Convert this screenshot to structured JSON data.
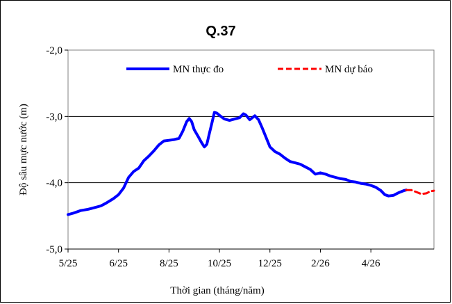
{
  "chart_data": {
    "type": "line",
    "title": "Q.37",
    "xlabel": "Thời gian (tháng/năm)",
    "ylabel": "Độ sâu mực nước (m)",
    "ylim": [
      -5.0,
      -2.0
    ],
    "yticks": [
      -2.0,
      -3.0,
      -4.0,
      -5.0
    ],
    "ytick_labels": [
      "-2,0",
      "-3,0",
      "-4,0",
      "-5,0"
    ],
    "xlim": [
      0,
      14.5
    ],
    "xticks": [
      0,
      2,
      4,
      6,
      8,
      10,
      12
    ],
    "xtick_labels": [
      "5/25",
      "6/25",
      "8/25",
      "10/25",
      "12/25",
      "2/26",
      "4/26"
    ],
    "grid": "horizontal",
    "legend_position": "top",
    "series": [
      {
        "name": "MN thực đo",
        "color": "#0000ff",
        "style": "solid",
        "points": [
          [
            0.0,
            -4.48
          ],
          [
            0.2,
            -4.46
          ],
          [
            0.5,
            -4.42
          ],
          [
            0.8,
            -4.4
          ],
          [
            1.0,
            -4.38
          ],
          [
            1.3,
            -4.35
          ],
          [
            1.5,
            -4.31
          ],
          [
            1.8,
            -4.24
          ],
          [
            2.0,
            -4.18
          ],
          [
            2.2,
            -4.08
          ],
          [
            2.4,
            -3.92
          ],
          [
            2.6,
            -3.83
          ],
          [
            2.8,
            -3.78
          ],
          [
            3.0,
            -3.67
          ],
          [
            3.2,
            -3.6
          ],
          [
            3.4,
            -3.52
          ],
          [
            3.6,
            -3.43
          ],
          [
            3.8,
            -3.37
          ],
          [
            4.0,
            -3.36
          ],
          [
            4.2,
            -3.35
          ],
          [
            4.4,
            -3.33
          ],
          [
            4.55,
            -3.22
          ],
          [
            4.7,
            -3.08
          ],
          [
            4.8,
            -3.03
          ],
          [
            4.9,
            -3.08
          ],
          [
            5.0,
            -3.2
          ],
          [
            5.15,
            -3.3
          ],
          [
            5.3,
            -3.4
          ],
          [
            5.4,
            -3.46
          ],
          [
            5.5,
            -3.42
          ],
          [
            5.6,
            -3.26
          ],
          [
            5.7,
            -3.1
          ],
          [
            5.8,
            -2.94
          ],
          [
            5.9,
            -2.95
          ],
          [
            6.05,
            -3.0
          ],
          [
            6.2,
            -3.04
          ],
          [
            6.4,
            -3.06
          ],
          [
            6.6,
            -3.04
          ],
          [
            6.8,
            -3.02
          ],
          [
            6.95,
            -2.96
          ],
          [
            7.05,
            -2.98
          ],
          [
            7.2,
            -3.05
          ],
          [
            7.4,
            -2.99
          ],
          [
            7.55,
            -3.05
          ],
          [
            7.7,
            -3.18
          ],
          [
            7.85,
            -3.32
          ],
          [
            8.0,
            -3.46
          ],
          [
            8.2,
            -3.53
          ],
          [
            8.4,
            -3.57
          ],
          [
            8.6,
            -3.63
          ],
          [
            8.8,
            -3.68
          ],
          [
            9.0,
            -3.7
          ],
          [
            9.2,
            -3.72
          ],
          [
            9.4,
            -3.76
          ],
          [
            9.6,
            -3.8
          ],
          [
            9.8,
            -3.87
          ],
          [
            10.0,
            -3.85
          ],
          [
            10.2,
            -3.87
          ],
          [
            10.4,
            -3.9
          ],
          [
            10.6,
            -3.92
          ],
          [
            10.8,
            -3.94
          ],
          [
            11.0,
            -3.95
          ],
          [
            11.2,
            -3.98
          ],
          [
            11.4,
            -3.99
          ],
          [
            11.6,
            -4.01
          ],
          [
            11.8,
            -4.02
          ],
          [
            12.0,
            -4.04
          ],
          [
            12.2,
            -4.07
          ],
          [
            12.4,
            -4.12
          ],
          [
            12.55,
            -4.18
          ],
          [
            12.7,
            -4.2
          ],
          [
            12.9,
            -4.19
          ],
          [
            13.1,
            -4.15
          ],
          [
            13.3,
            -4.12
          ],
          [
            13.4,
            -4.11
          ]
        ]
      },
      {
        "name": "MN dự báo",
        "color": "#ff0000",
        "style": "dashed",
        "points": [
          [
            13.4,
            -4.11
          ],
          [
            13.6,
            -4.11
          ],
          [
            13.8,
            -4.14
          ],
          [
            14.0,
            -4.17
          ],
          [
            14.2,
            -4.16
          ],
          [
            14.35,
            -4.13
          ],
          [
            14.5,
            -4.12
          ]
        ]
      }
    ]
  }
}
